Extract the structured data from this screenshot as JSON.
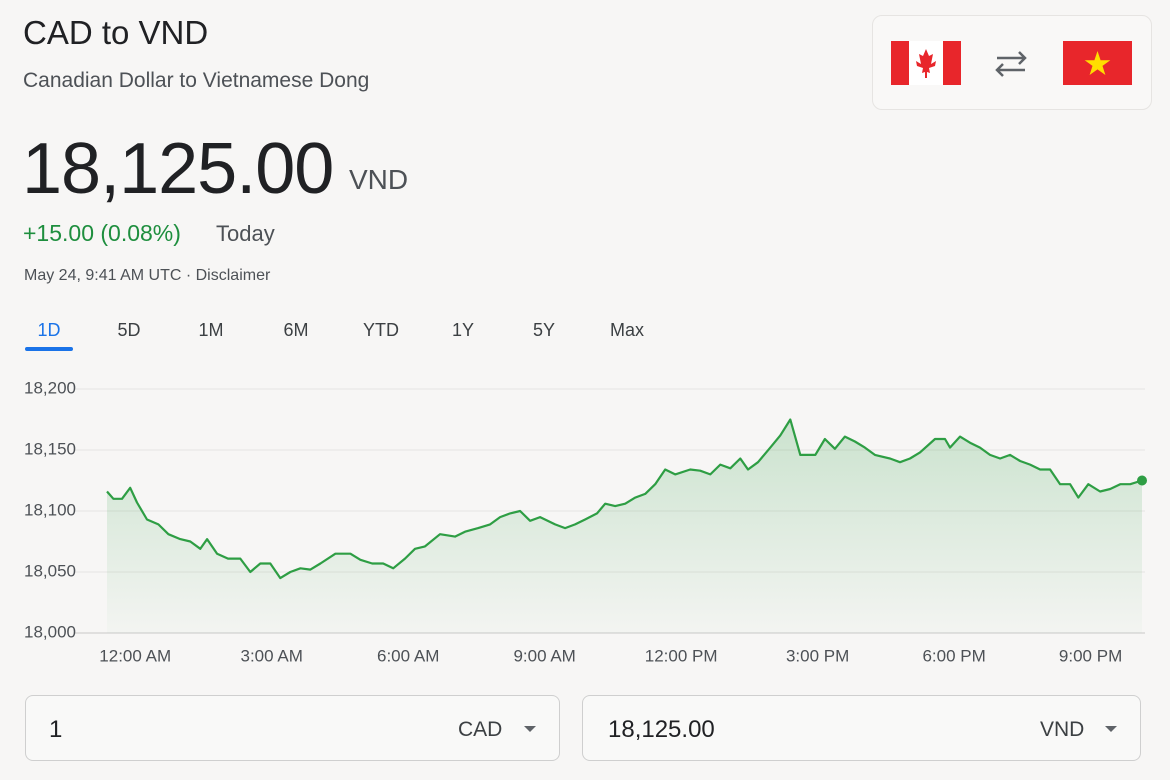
{
  "header": {
    "title": "CAD to VND",
    "subtitle": "Canadian Dollar to Vietnamese Dong"
  },
  "quote": {
    "price": "18,125.00",
    "currency": "VND",
    "change": "+15.00 (0.08%)",
    "period": "Today",
    "timestamp": "May 24, 9:41 AM UTC",
    "separator": "·",
    "disclaimer": "Disclaimer"
  },
  "tabs": [
    "1D",
    "5D",
    "1M",
    "6M",
    "YTD",
    "1Y",
    "5Y",
    "Max"
  ],
  "chart_data": {
    "type": "line",
    "x": [
      -0.62,
      -0.48,
      -0.29,
      -0.11,
      0.04,
      0.26,
      0.51,
      0.73,
      0.99,
      1.21,
      1.43,
      1.58,
      1.8,
      2.04,
      2.31,
      2.53,
      2.75,
      2.97,
      3.19,
      3.41,
      3.63,
      3.85,
      4.07,
      4.4,
      4.73,
      4.95,
      5.21,
      5.45,
      5.67,
      5.93,
      6.15,
      6.37,
      6.7,
      7.03,
      7.25,
      7.54,
      7.8,
      8.02,
      8.24,
      8.46,
      8.68,
      8.9,
      9.23,
      9.45,
      9.67,
      9.89,
      10.15,
      10.33,
      10.55,
      10.77,
      10.99,
      11.21,
      11.43,
      11.65,
      11.87,
      12.2,
      12.42,
      12.64,
      12.86,
      13.08,
      13.3,
      13.47,
      13.69,
      13.96,
      14.18,
      14.4,
      14.62,
      14.95,
      15.16,
      15.38,
      15.6,
      15.82,
      16.04,
      16.26,
      16.59,
      16.81,
      17.03,
      17.25,
      17.58,
      17.8,
      17.91,
      18.13,
      18.35,
      18.57,
      18.79,
      19.01,
      19.23,
      19.45,
      19.67,
      19.89,
      20.11,
      20.33,
      20.55,
      20.73,
      20.95,
      21.21,
      21.43,
      21.65,
      21.87,
      22.13
    ],
    "series": [
      {
        "color": "#2e9e44",
        "values": [
          18116,
          18110,
          18110,
          18119,
          18107,
          18093,
          18089,
          18081,
          18077,
          18075,
          18069,
          18077,
          18065,
          18061,
          18061,
          18050,
          18057,
          18057,
          18045,
          18050,
          18053,
          18052,
          18057,
          18065,
          18065,
          18060,
          18057,
          18057,
          18053,
          18061,
          18069,
          18071,
          18081,
          18079,
          18083,
          18086,
          18089,
          18095,
          18098,
          18100,
          18092,
          18095,
          18089,
          18086,
          18089,
          18093,
          18098,
          18106,
          18104,
          18106,
          18111,
          18114,
          18122,
          18134,
          18130,
          18134,
          18133,
          18130,
          18138,
          18135,
          18143,
          18134,
          18140,
          18152,
          18162,
          18175,
          18146,
          18146,
          18159,
          18151,
          18161,
          18157,
          18152,
          18146,
          18143,
          18140,
          18143,
          18148,
          18159,
          18159,
          18152,
          18161,
          18156,
          18152,
          18146,
          18143,
          18146,
          18141,
          18138,
          18134,
          18134,
          18122,
          18122,
          18111,
          18122,
          18116,
          18118,
          18122,
          18122,
          18125
        ]
      }
    ],
    "xlim": [
      -0.62,
      22.13
    ],
    "xticks": [
      {
        "value": 0,
        "label": "12:00 AM"
      },
      {
        "value": 3,
        "label": "3:00 AM"
      },
      {
        "value": 6,
        "label": "6:00 AM"
      },
      {
        "value": 9,
        "label": "9:00 AM"
      },
      {
        "value": 12,
        "label": "12:00 PM"
      },
      {
        "value": 15,
        "label": "3:00 PM"
      },
      {
        "value": 18,
        "label": "6:00 PM"
      },
      {
        "value": 21,
        "label": "9:00 PM"
      }
    ],
    "ylim": [
      18000,
      18200
    ],
    "yticks": [
      {
        "value": 18000,
        "label": "18,000"
      },
      {
        "value": 18050,
        "label": "18,050"
      },
      {
        "value": 18100,
        "label": "18,100"
      },
      {
        "value": 18150,
        "label": "18,150"
      },
      {
        "value": 18200,
        "label": "18,200"
      }
    ],
    "grid": true
  },
  "converter": {
    "from_amount": "1",
    "from_currency": "CAD",
    "to_amount": "18,125.00",
    "to_currency": "VND"
  }
}
